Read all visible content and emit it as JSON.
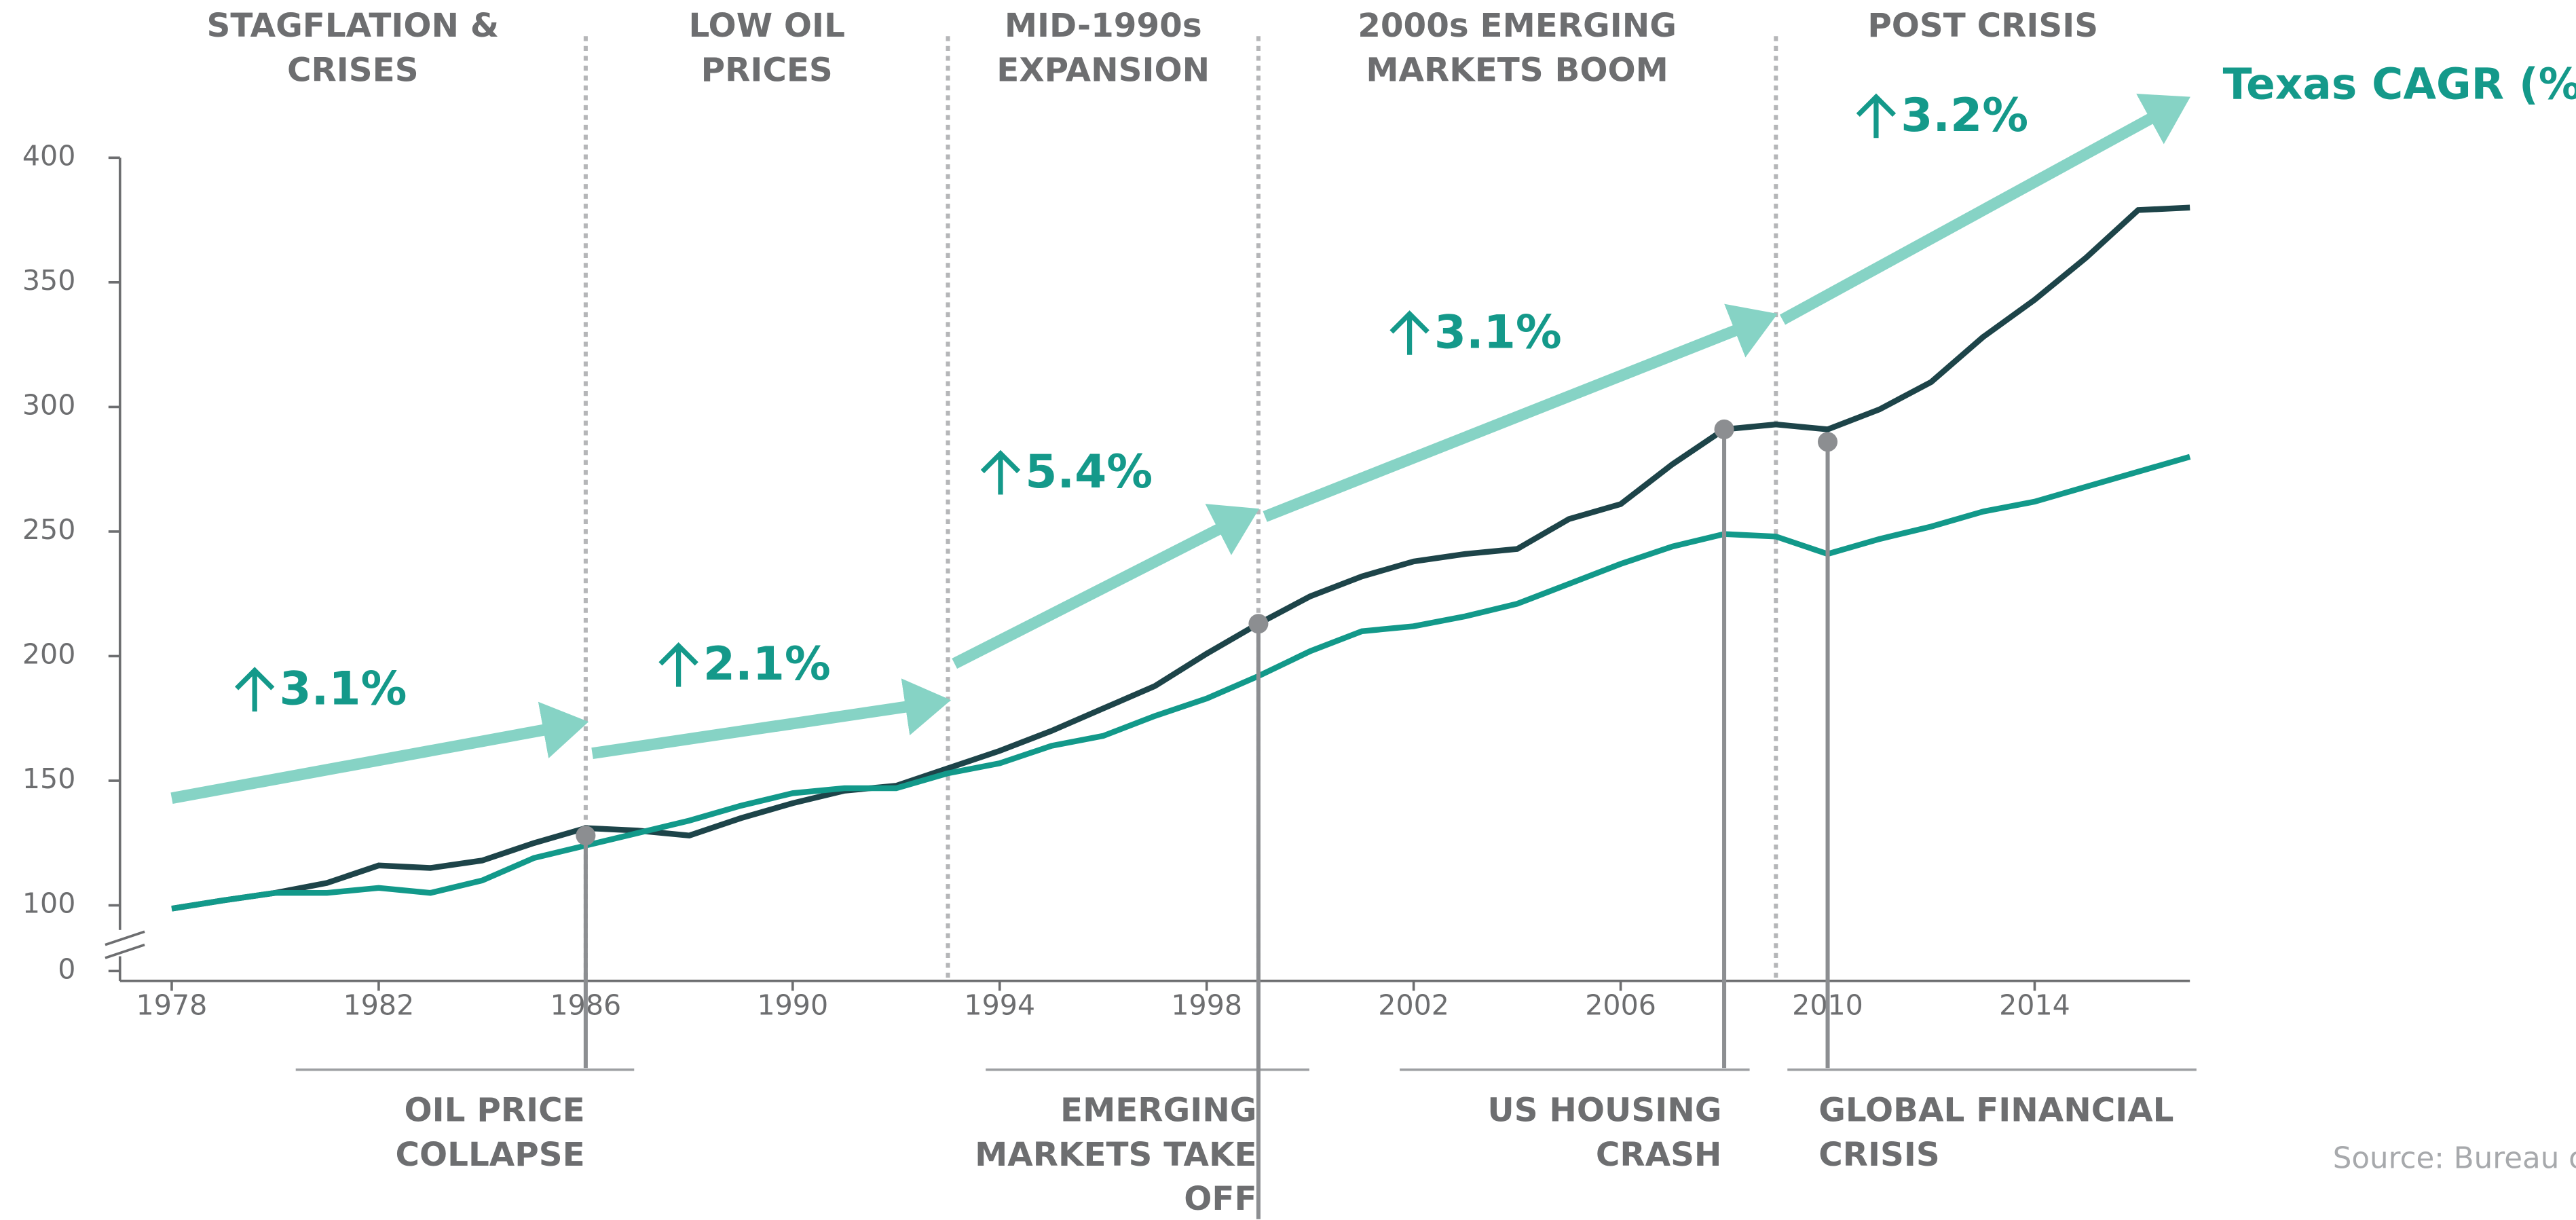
{
  "chart_data": {
    "type": "line",
    "x": [
      1978,
      1979,
      1980,
      1981,
      1982,
      1983,
      1984,
      1985,
      1986,
      1987,
      1988,
      1989,
      1990,
      1991,
      1992,
      1993,
      1994,
      1995,
      1996,
      1997,
      1998,
      1999,
      2000,
      2001,
      2002,
      2003,
      2004,
      2005,
      2006,
      2007,
      2008,
      2009,
      2010,
      2011,
      2012,
      2013,
      2014,
      2015,
      2016,
      2017
    ],
    "series": [
      {
        "color": "#1d4449",
        "values": [
          95,
          102,
          105,
          109,
          116,
          115,
          118,
          125,
          131,
          130,
          128,
          135,
          141,
          146,
          148,
          155,
          162,
          170,
          179,
          188,
          201,
          213,
          224,
          232,
          238,
          241,
          243,
          255,
          261,
          277,
          291,
          293,
          291,
          299,
          310,
          328,
          343,
          360,
          379,
          380
        ]
      },
      {
        "color": "#12998a",
        "values": [
          95,
          102,
          105,
          105,
          107,
          105,
          110,
          119,
          124,
          129,
          134,
          140,
          145,
          147,
          147,
          153,
          157,
          164,
          168,
          176,
          183,
          192,
          202,
          210,
          212,
          216,
          221,
          229,
          237,
          244,
          249,
          248,
          241,
          247,
          252,
          258,
          262,
          268,
          274,
          280
        ]
      }
    ],
    "xlim": [
      1977,
      2017
    ],
    "xticks": [
      1978,
      1982,
      1986,
      1990,
      1994,
      1998,
      2002,
      2006,
      2010,
      2014
    ],
    "ylim": [
      0,
      400
    ],
    "y_break": [
      0,
      100
    ],
    "yticks": [
      0,
      100,
      150,
      200,
      250,
      300,
      350,
      400
    ],
    "period_boundaries": [
      1986,
      1993,
      1999,
      2009
    ],
    "periods": [
      {
        "label": [
          "STAGFLATION &",
          "CRISES"
        ]
      },
      {
        "label": [
          "LOW OIL",
          "PRICES"
        ]
      },
      {
        "label": [
          "MID-1990s",
          "EXPANSION"
        ]
      },
      {
        "label": [
          "2000s EMERGING",
          "MARKETS BOOM"
        ]
      },
      {
        "label": [
          "POST CRISIS"
        ]
      }
    ],
    "trend_title": "Texas CAGR (%)",
    "trend_color": "#86d3c5",
    "trend_lines": [
      {
        "x": [
          1978,
          1986
        ],
        "y": [
          143,
          172
        ],
        "value": 3.1,
        "label": "3.1%"
      },
      {
        "x": [
          1986,
          1993
        ],
        "y": [
          161,
          181
        ],
        "value": 2.1,
        "label": "2.1%"
      },
      {
        "x": [
          1993,
          1999
        ],
        "y": [
          197,
          255
        ],
        "value": 5.4,
        "label": "5.4%"
      },
      {
        "x": [
          1999,
          2009
        ],
        "y": [
          256,
          334
        ],
        "value": 3.1,
        "label": "3.1%"
      },
      {
        "x": [
          2009,
          2017
        ],
        "y": [
          335,
          420
        ],
        "value": 3.2,
        "label": "3.2%"
      }
    ],
    "events": [
      {
        "label": [
          "OIL PRICE",
          "COLLAPSE"
        ],
        "x": 1986,
        "y": 128
      },
      {
        "label": [
          "EMERGING",
          "MARKETS TAKE",
          "OFF"
        ],
        "x": 1999,
        "y": 213
      },
      {
        "label": [
          "US HOUSING",
          "CRASH"
        ],
        "x": 2008,
        "y": 291
      },
      {
        "label": [
          "GLOBAL FINANCIAL",
          "CRISIS"
        ],
        "x": 2010,
        "y": 286
      }
    ],
    "source": "Source: Bureau o"
  }
}
